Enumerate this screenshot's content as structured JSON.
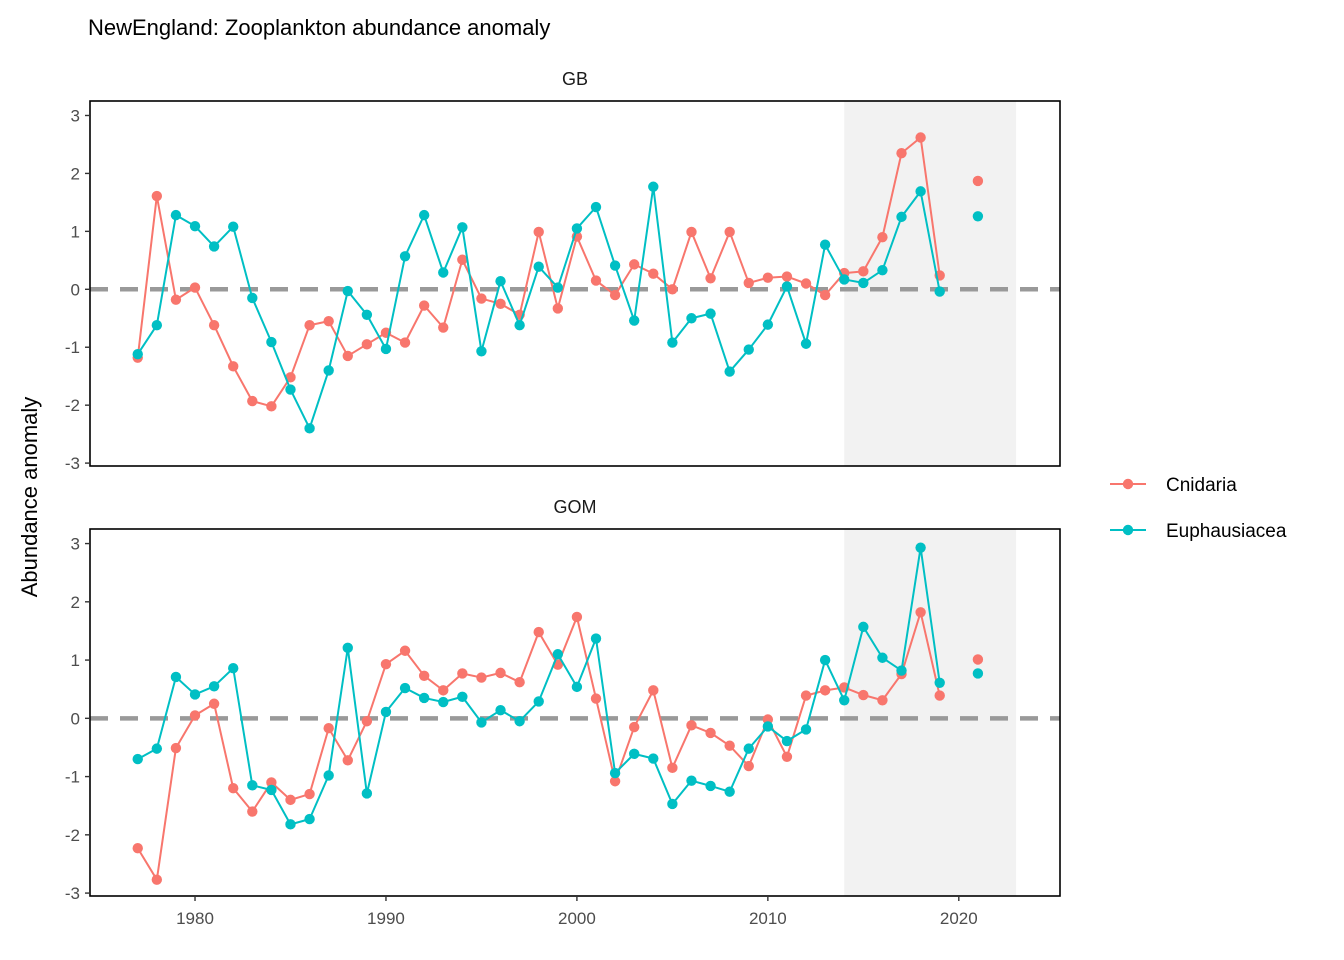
{
  "chart_data": {
    "type": "line",
    "title": "NewEngland: Zooplankton abundance anomaly",
    "ylabel": "Abundance anomaly",
    "xlabel": "",
    "xlim": [
      1974.5,
      2025.3
    ],
    "ylim": [
      -3.05,
      3.25
    ],
    "x_ticks": [
      1980,
      1990,
      2000,
      2010,
      2020
    ],
    "y_ticks": [
      -3,
      -2,
      -1,
      0,
      1,
      2,
      3
    ],
    "reference_line": 0,
    "highlight_range": [
      2014,
      2023
    ],
    "grid": false,
    "legend_position": "right",
    "colors": {
      "Cnidaria": "#F8766D",
      "Euphausiacea": "#00BFC4",
      "reference": "#999999",
      "highlight": "#f2f2f2"
    },
    "panels": [
      {
        "name": "GB",
        "series": [
          {
            "name": "Cnidaria",
            "x": [
              1977,
              1978,
              1979,
              1980,
              1981,
              1982,
              1983,
              1984,
              1985,
              1986,
              1987,
              1988,
              1989,
              1990,
              1991,
              1992,
              1993,
              1994,
              1995,
              1996,
              1997,
              1998,
              1999,
              2000,
              2001,
              2002,
              2003,
              2004,
              2005,
              2006,
              2007,
              2008,
              2009,
              2010,
              2011,
              2012,
              2013,
              2014,
              2015,
              2016,
              2017,
              2018,
              2019,
              2021
            ],
            "y": [
              -1.18,
              1.61,
              -0.18,
              0.03,
              -0.62,
              -1.33,
              -1.93,
              -2.02,
              -1.52,
              -0.62,
              -0.55,
              -1.15,
              -0.95,
              -0.75,
              -0.92,
              -0.28,
              -0.66,
              0.51,
              -0.16,
              -0.25,
              -0.44,
              0.99,
              -0.33,
              0.91,
              0.15,
              -0.1,
              0.43,
              0.27,
              0.0,
              0.99,
              0.19,
              0.99,
              0.11,
              0.2,
              0.22,
              0.1,
              -0.1,
              0.28,
              0.31,
              0.9,
              2.35,
              2.62,
              0.24,
              1.87
            ]
          },
          {
            "name": "Euphausiacea",
            "x": [
              1977,
              1978,
              1979,
              1980,
              1981,
              1982,
              1983,
              1984,
              1985,
              1986,
              1987,
              1988,
              1989,
              1990,
              1991,
              1992,
              1993,
              1994,
              1995,
              1996,
              1997,
              1998,
              1999,
              2000,
              2001,
              2002,
              2003,
              2004,
              2005,
              2006,
              2007,
              2008,
              2009,
              2010,
              2011,
              2012,
              2013,
              2014,
              2015,
              2016,
              2017,
              2018,
              2019,
              2021
            ],
            "y": [
              -1.12,
              -0.62,
              1.28,
              1.09,
              0.74,
              1.08,
              -0.15,
              -0.91,
              -1.73,
              -2.4,
              -1.4,
              -0.03,
              -0.44,
              -1.03,
              0.57,
              1.28,
              0.29,
              1.07,
              -1.07,
              0.14,
              -0.62,
              0.39,
              0.03,
              1.05,
              1.42,
              0.41,
              -0.54,
              1.77,
              -0.92,
              -0.5,
              -0.42,
              -1.42,
              -1.04,
              -0.61,
              0.05,
              -0.94,
              0.77,
              0.17,
              0.11,
              0.33,
              1.25,
              1.69,
              -0.04,
              1.26
            ]
          }
        ]
      },
      {
        "name": "GOM",
        "series": [
          {
            "name": "Cnidaria",
            "x": [
              1977,
              1978,
              1979,
              1980,
              1981,
              1982,
              1983,
              1984,
              1985,
              1986,
              1987,
              1988,
              1989,
              1990,
              1991,
              1992,
              1993,
              1994,
              1995,
              1996,
              1997,
              1998,
              1999,
              2000,
              2001,
              2002,
              2003,
              2004,
              2005,
              2006,
              2007,
              2008,
              2009,
              2010,
              2011,
              2012,
              2013,
              2014,
              2015,
              2016,
              2017,
              2018,
              2019,
              2021
            ],
            "y": [
              -2.23,
              -2.77,
              -0.51,
              0.05,
              0.25,
              -1.2,
              -1.6,
              -1.1,
              -1.4,
              -1.3,
              -0.17,
              -0.72,
              -0.05,
              0.93,
              1.16,
              0.73,
              0.48,
              0.77,
              0.7,
              0.78,
              0.62,
              1.48,
              0.92,
              1.74,
              0.34,
              -1.08,
              -0.15,
              0.48,
              -0.85,
              -0.12,
              -0.25,
              -0.47,
              -0.82,
              -0.02,
              -0.66,
              0.39,
              0.48,
              0.53,
              0.4,
              0.31,
              0.76,
              1.82,
              0.39,
              1.01
            ]
          },
          {
            "name": "Euphausiacea",
            "x": [
              1977,
              1978,
              1979,
              1980,
              1981,
              1982,
              1983,
              1984,
              1985,
              1986,
              1987,
              1988,
              1989,
              1990,
              1991,
              1992,
              1993,
              1994,
              1995,
              1996,
              1997,
              1998,
              1999,
              2000,
              2001,
              2002,
              2003,
              2004,
              2005,
              2006,
              2007,
              2008,
              2009,
              2010,
              2011,
              2012,
              2013,
              2014,
              2015,
              2016,
              2017,
              2018,
              2019,
              2021
            ],
            "y": [
              -0.7,
              -0.52,
              0.71,
              0.41,
              0.55,
              0.86,
              -1.15,
              -1.23,
              -1.82,
              -1.73,
              -0.98,
              1.21,
              -1.29,
              0.11,
              0.52,
              0.35,
              0.28,
              0.37,
              -0.07,
              0.14,
              -0.05,
              0.29,
              1.1,
              0.54,
              1.37,
              -0.94,
              -0.61,
              -0.69,
              -1.47,
              -1.07,
              -1.16,
              -1.26,
              -0.52,
              -0.14,
              -0.39,
              -0.19,
              1.0,
              0.31,
              1.57,
              1.04,
              0.82,
              2.93,
              0.61,
              0.77
            ]
          }
        ]
      }
    ],
    "legend": [
      {
        "name": "Cnidaria",
        "label": "Cnidaria"
      },
      {
        "name": "Euphausiacea",
        "label": "Euphausiacea"
      }
    ]
  }
}
